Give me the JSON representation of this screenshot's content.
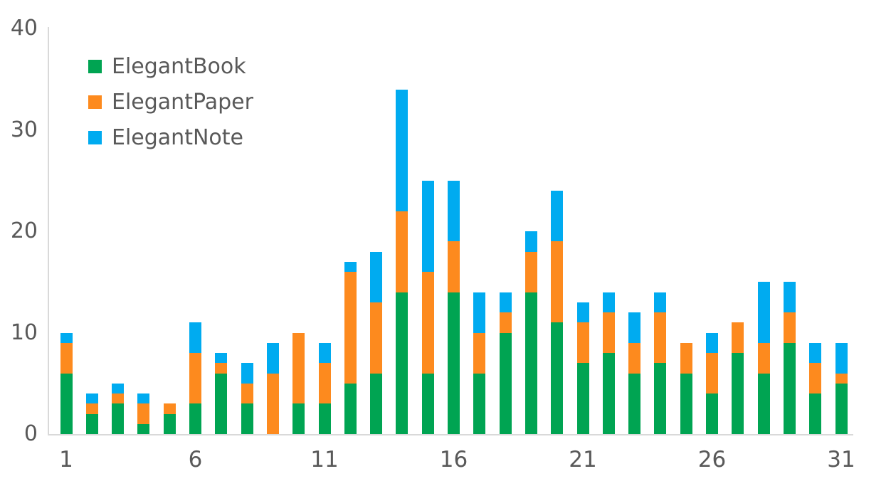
{
  "chart_data": {
    "type": "bar",
    "stacked": true,
    "title": "",
    "xlabel": "",
    "ylabel": "",
    "x": [
      1,
      2,
      3,
      4,
      5,
      6,
      7,
      8,
      9,
      10,
      11,
      12,
      13,
      14,
      15,
      16,
      17,
      18,
      19,
      20,
      21,
      22,
      23,
      24,
      25,
      26,
      27,
      28,
      29,
      30,
      31
    ],
    "xtick_labels": [
      "1",
      "6",
      "11",
      "16",
      "21",
      "26",
      "31"
    ],
    "xtick_values": [
      1,
      6,
      11,
      16,
      21,
      26,
      31
    ],
    "ytick_labels": [
      "0",
      "10",
      "20",
      "30",
      "40"
    ],
    "ytick_values": [
      0,
      10,
      20,
      30,
      40
    ],
    "ylim": [
      0,
      40
    ],
    "grid": false,
    "legend_position": "inside-top-left",
    "series": [
      {
        "name": "ElegantBook",
        "color": "#00A452",
        "values": [
          6,
          2,
          3,
          1,
          2,
          3,
          6,
          3,
          0,
          3,
          3,
          5,
          6,
          14,
          6,
          14,
          6,
          10,
          14,
          11,
          7,
          8,
          6,
          7,
          6,
          4,
          8,
          6,
          9,
          4,
          5
        ]
      },
      {
        "name": "ElegantPaper",
        "color": "#FD8A1E",
        "values": [
          3,
          1,
          1,
          2,
          1,
          5,
          1,
          2,
          6,
          7,
          4,
          11,
          7,
          8,
          10,
          5,
          4,
          2,
          4,
          8,
          4,
          4,
          3,
          5,
          3,
          4,
          3,
          3,
          3,
          3,
          1
        ]
      },
      {
        "name": "ElegantNote",
        "color": "#00ABF0",
        "values": [
          1,
          1,
          1,
          1,
          0,
          3,
          1,
          2,
          3,
          0,
          2,
          1,
          5,
          12,
          9,
          6,
          4,
          2,
          2,
          5,
          2,
          2,
          3,
          2,
          0,
          2,
          0,
          6,
          3,
          2,
          3
        ]
      }
    ],
    "totals": [
      10,
      4,
      5,
      4,
      3,
      11,
      8,
      7,
      9,
      10,
      9,
      17,
      18,
      34,
      25,
      25,
      14,
      14,
      20,
      24,
      13,
      14,
      12,
      14,
      9,
      10,
      11,
      15,
      15,
      9,
      9
    ],
    "colors": {
      "axis_line": "#D9D9D9",
      "tick_label": "#595959",
      "legend_label": "#595959",
      "background": "#FFFFFF"
    }
  }
}
